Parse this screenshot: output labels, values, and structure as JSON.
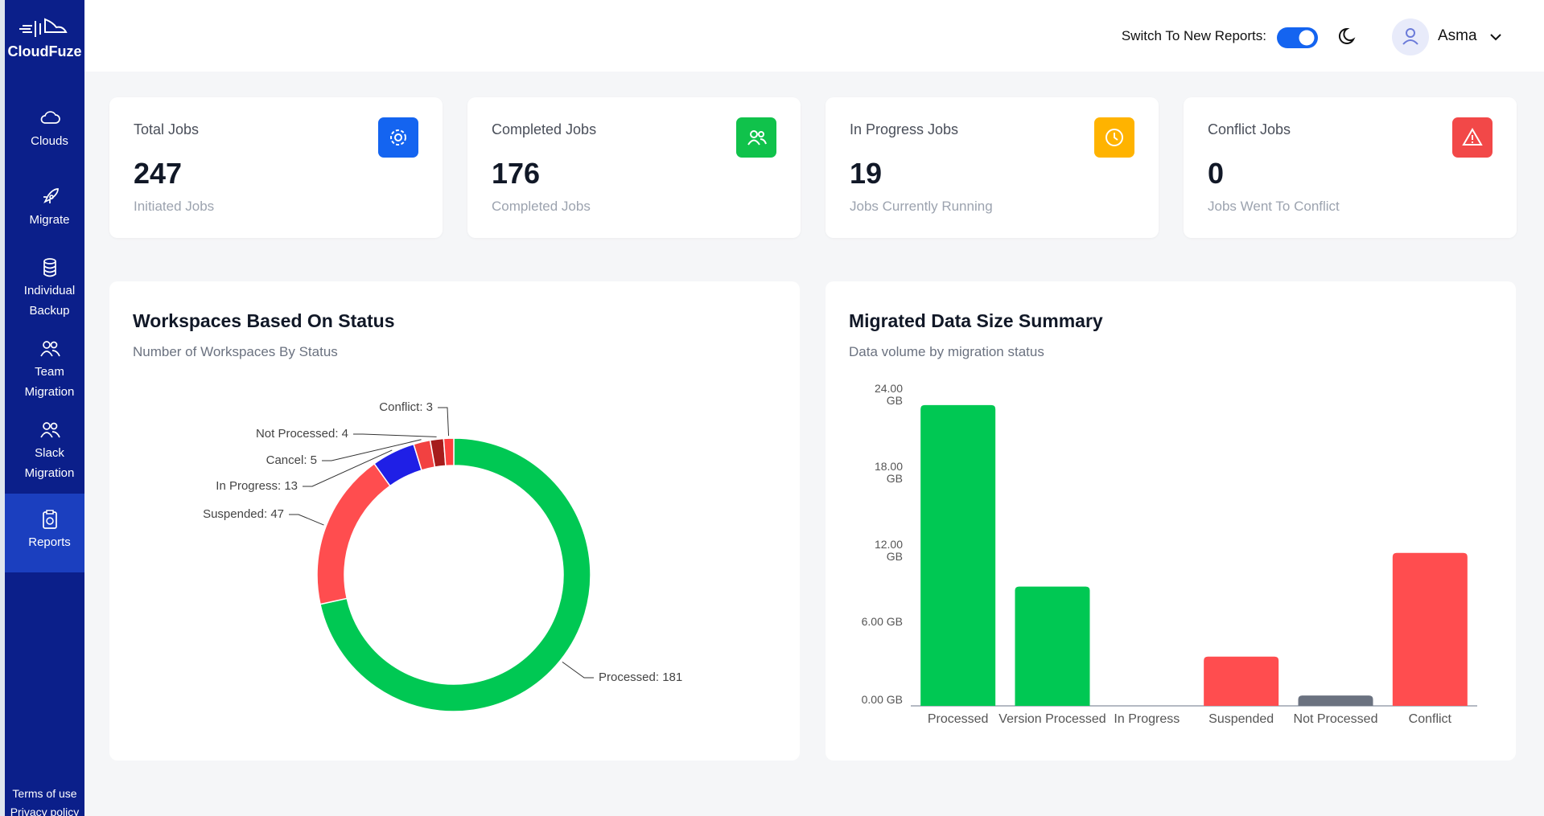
{
  "sidebar": {
    "brand": "CloudFuze",
    "nav": [
      "Clouds",
      "Migrate",
      "Individual Backup",
      "Team Migration",
      "Slack Migration",
      "Reports"
    ],
    "footer": [
      "Terms of use",
      "Privacy policy"
    ]
  },
  "header": {
    "toggle_label": "Switch To New Reports:",
    "user": "Asma"
  },
  "cards": [
    {
      "title": "Total Jobs",
      "value": 247,
      "subtitle": "Initiated Jobs"
    },
    {
      "title": "Completed Jobs",
      "value": 176,
      "subtitle": "Completed Jobs"
    },
    {
      "title": "In Progress Jobs",
      "value": 19,
      "subtitle": "Jobs Currently Running"
    },
    {
      "title": "Conflict Jobs",
      "value": 0,
      "subtitle": "Jobs Went To Conflict"
    }
  ],
  "chart_data": [
    {
      "type": "donut",
      "title": "Workspaces Based On Status",
      "subtitle": "Number of Workspaces By Status",
      "categories": [
        "Processed",
        "Suspended",
        "In Progress",
        "Cancel",
        "Not Processed",
        "Conflict"
      ],
      "values": [
        181,
        47,
        13,
        5,
        4,
        3
      ],
      "value_labels": [
        "Processed: 181",
        "Suspended: 47",
        "In Progress: 13",
        "Cancel: 5",
        "Not Processed: 4",
        "Conflict: 3"
      ],
      "colors": [
        "#00c853",
        "#ff4d4f",
        "#1f1fe6",
        "#f24141",
        "#a61b1b",
        "#ff4040"
      ]
    },
    {
      "type": "bar",
      "title": "Migrated Data Size Summary",
      "subtitle": "Data volume by migration status",
      "categories": [
        "Processed",
        "Version Processed",
        "In Progress",
        "Suspended",
        "Not Processed",
        "Conflict"
      ],
      "values": [
        23.2,
        9.2,
        0,
        3.8,
        0.8,
        11.8
      ],
      "colors": [
        "#00c853",
        "#00c853",
        "#00c853",
        "#ff4d4f",
        "#6b7280",
        "#ff4d4f"
      ],
      "ylim": [
        0,
        24
      ],
      "yticks": [
        {
          "value": 0,
          "label": "0.00 GB"
        },
        {
          "value": 6,
          "label": "6.00 GB"
        },
        {
          "value": 12,
          "label": "12.00 GB"
        },
        {
          "value": 18,
          "label": "18.00 GB"
        },
        {
          "value": 24,
          "label": "24.00 GB"
        }
      ],
      "grid": false
    }
  ]
}
